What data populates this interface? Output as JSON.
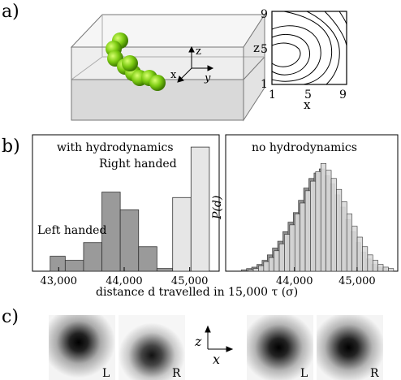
{
  "panels": {
    "a_label": "a)",
    "b_label": "b)",
    "c_label": "c)"
  },
  "panel_a": {
    "axes_labels": {
      "z": "z",
      "x": "x",
      "y": "y"
    },
    "contour": {
      "y_label": "z",
      "x_label": "x",
      "y_ticks": [
        "9",
        "5",
        "1"
      ],
      "x_ticks": [
        "1",
        "5",
        "9"
      ]
    }
  },
  "panel_b": {
    "shared_xlabel": "distance d travelled in 15,000 τ (σ)",
    "left_chart": {
      "title": "with hydrodynamics",
      "annotation_right": "Right handed",
      "annotation_left": "Left handed",
      "x_ticks": [
        "43,000",
        "44,000",
        "45,000"
      ]
    },
    "right_chart": {
      "title": "no hydrodynamics",
      "ylabel": "P(d)",
      "x_ticks": [
        "44,000",
        "45,000"
      ]
    }
  },
  "panel_c": {
    "axes": {
      "z": "z",
      "x": "x"
    },
    "images": [
      {
        "label": "L"
      },
      {
        "label": "R"
      },
      {
        "label": "L"
      },
      {
        "label": "R"
      }
    ]
  },
  "chart_data": [
    {
      "type": "bar",
      "xlim": [
        42600,
        45450
      ],
      "ylim": [
        0,
        1
      ],
      "x_ticks": [
        43000,
        44000,
        45000
      ],
      "series": [
        {
          "name": "Left handed",
          "bins": [
            [
              42870,
              43100,
              0.11
            ],
            [
              43100,
              43380,
              0.08
            ],
            [
              43380,
              43660,
              0.21
            ],
            [
              43660,
              43940,
              0.58
            ],
            [
              43940,
              44220,
              0.45
            ],
            [
              44220,
              44500,
              0.18
            ],
            [
              44500,
              44740,
              0.02
            ]
          ],
          "color": "#9a9a9a"
        },
        {
          "name": "Right handed",
          "bins": [
            [
              44740,
              45020,
              0.54
            ],
            [
              45020,
              45300,
              0.91
            ]
          ],
          "color": "#e6e6e6"
        }
      ]
    },
    {
      "type": "bar",
      "xlim": [
        42900,
        45650
      ],
      "x_ticks": [
        44000,
        45000
      ],
      "series": [
        {
          "name": "dark",
          "color": "#8f8f8f",
          "values": [
            0.01,
            0.02,
            0.03,
            0.05,
            0.08,
            0.12,
            0.17,
            0.22,
            0.29,
            0.36,
            0.43,
            0.52,
            0.61,
            0.68,
            0.72,
            0.75,
            0.7,
            0.64,
            0.56,
            0.47,
            0.38,
            0.29,
            0.21,
            0.14,
            0.09,
            0.05,
            0.03,
            0.02,
            0.01
          ]
        },
        {
          "name": "light",
          "color": "#dadada",
          "values": [
            0.0,
            0.01,
            0.02,
            0.04,
            0.07,
            0.1,
            0.15,
            0.2,
            0.27,
            0.34,
            0.42,
            0.5,
            0.59,
            0.66,
            0.73,
            0.79,
            0.74,
            0.68,
            0.6,
            0.51,
            0.42,
            0.33,
            0.25,
            0.18,
            0.12,
            0.08,
            0.05,
            0.03,
            0.02
          ]
        }
      ]
    }
  ]
}
